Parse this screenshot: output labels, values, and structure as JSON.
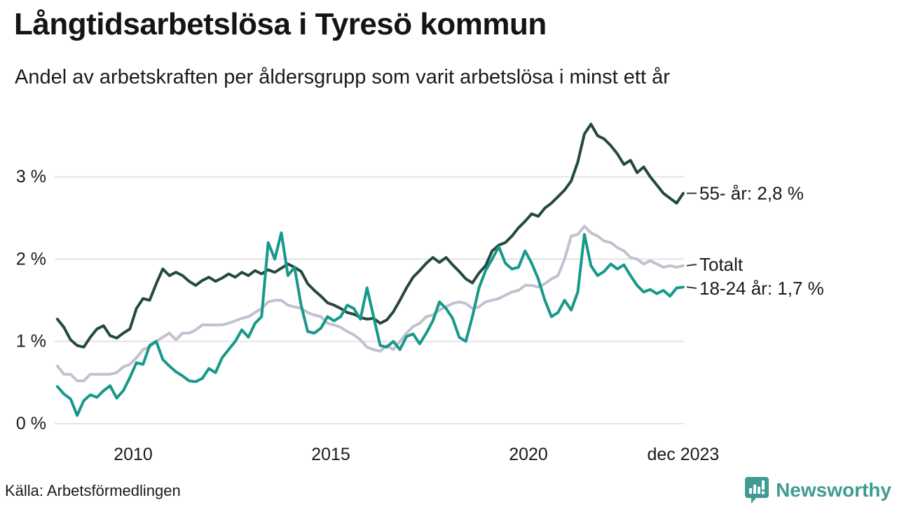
{
  "header": {
    "title": "Långtidsarbetslösa i Tyresö kommun",
    "subtitle": "Andel av arbetskraften per åldersgrupp som varit arbetslösa i minst ett år"
  },
  "source": {
    "label": "Källa: Arbetsförmedlingen"
  },
  "branding": {
    "wordmark": "Newsworthy",
    "icon": "bar-chart-speech-bubble-icon",
    "color": "#3f9c92"
  },
  "colors": {
    "grid": "#e4e4e8",
    "text": "#1a1a1a",
    "leader": "#3c3c3c"
  },
  "chart_data": {
    "type": "line",
    "title": "Långtidsarbetslösa i Tyresö kommun",
    "subtitle": "Andel av arbetskraften per åldersgrupp som varit arbetslösa i minst ett år",
    "unit": "%",
    "grid": true,
    "legend_position": "right-edge-labels",
    "x_start_year": 2008.083,
    "x_step_years": 0.166667,
    "xlim": [
      2008.0,
      2023.95
    ],
    "ylim": [
      0,
      3.8
    ],
    "y_ticks": [
      {
        "label": "0 %",
        "value": 0
      },
      {
        "label": "1 %",
        "value": 1
      },
      {
        "label": "2 %",
        "value": 2
      },
      {
        "label": "3 %",
        "value": 3
      }
    ],
    "x_ticks": [
      {
        "label": "2010",
        "year": 2010
      },
      {
        "label": "2015",
        "year": 2015
      },
      {
        "label": "2020",
        "year": 2020
      },
      {
        "label": "dec 2023",
        "year": 2023.917
      }
    ],
    "series": [
      {
        "name": "Totalt",
        "slug": "totalt",
        "end_label": "Totalt",
        "color": "#c3c1d0",
        "values": [
          0.7,
          0.6,
          0.6,
          0.52,
          0.52,
          0.6,
          0.6,
          0.6,
          0.6,
          0.62,
          0.69,
          0.72,
          0.8,
          0.9,
          0.93,
          1.0,
          1.05,
          1.1,
          1.02,
          1.1,
          1.1,
          1.14,
          1.2,
          1.2,
          1.2,
          1.2,
          1.22,
          1.25,
          1.28,
          1.3,
          1.35,
          1.4,
          1.48,
          1.5,
          1.5,
          1.44,
          1.42,
          1.4,
          1.35,
          1.32,
          1.3,
          1.22,
          1.2,
          1.17,
          1.12,
          1.08,
          1.02,
          0.93,
          0.9,
          0.88,
          0.95,
          0.9,
          1.0,
          1.1,
          1.18,
          1.22,
          1.3,
          1.32,
          1.38,
          1.42,
          1.46,
          1.48,
          1.46,
          1.4,
          1.42,
          1.48,
          1.5,
          1.52,
          1.56,
          1.6,
          1.62,
          1.68,
          1.68,
          1.66,
          1.7,
          1.76,
          1.8,
          2.0,
          2.28,
          2.3,
          2.4,
          2.32,
          2.28,
          2.22,
          2.2,
          2.14,
          2.1,
          2.02,
          2.0,
          1.94,
          1.98,
          1.94,
          1.9,
          1.92,
          1.9,
          1.92
        ]
      },
      {
        "name": "55- år",
        "slug": "55-ar",
        "end_label": "55- år: 2,8 %",
        "color": "#26493f",
        "values": [
          1.27,
          1.17,
          1.02,
          0.95,
          0.93,
          1.05,
          1.15,
          1.19,
          1.07,
          1.04,
          1.1,
          1.15,
          1.4,
          1.52,
          1.5,
          1.7,
          1.88,
          1.8,
          1.84,
          1.8,
          1.73,
          1.68,
          1.74,
          1.78,
          1.73,
          1.77,
          1.82,
          1.78,
          1.84,
          1.8,
          1.86,
          1.82,
          1.87,
          1.84,
          1.89,
          1.94,
          1.9,
          1.85,
          1.7,
          1.62,
          1.55,
          1.47,
          1.44,
          1.4,
          1.35,
          1.33,
          1.29,
          1.27,
          1.28,
          1.22,
          1.26,
          1.36,
          1.5,
          1.65,
          1.78,
          1.86,
          1.95,
          2.02,
          1.96,
          2.02,
          1.93,
          1.85,
          1.76,
          1.71,
          1.83,
          1.92,
          2.1,
          2.17,
          2.2,
          2.28,
          2.38,
          2.46,
          2.55,
          2.52,
          2.62,
          2.68,
          2.76,
          2.84,
          2.95,
          3.18,
          3.52,
          3.64,
          3.5,
          3.46,
          3.38,
          3.28,
          3.15,
          3.2,
          3.05,
          3.12,
          3.0,
          2.9,
          2.8,
          2.74,
          2.68,
          2.8
        ]
      },
      {
        "name": "18-24 år",
        "slug": "18-24-ar",
        "end_label": "18-24 år: 1,7 %",
        "color": "#16998a",
        "values": [
          0.45,
          0.36,
          0.3,
          0.1,
          0.28,
          0.35,
          0.32,
          0.4,
          0.46,
          0.31,
          0.4,
          0.56,
          0.74,
          0.72,
          0.95,
          1.0,
          0.78,
          0.7,
          0.63,
          0.58,
          0.52,
          0.51,
          0.55,
          0.67,
          0.62,
          0.8,
          0.9,
          1.0,
          1.14,
          1.05,
          1.22,
          1.3,
          2.2,
          2.0,
          2.32,
          1.8,
          1.9,
          1.44,
          1.12,
          1.1,
          1.16,
          1.3,
          1.25,
          1.3,
          1.44,
          1.4,
          1.27,
          1.65,
          1.3,
          0.95,
          0.93,
          1.0,
          0.9,
          1.06,
          1.09,
          0.97,
          1.1,
          1.25,
          1.48,
          1.4,
          1.28,
          1.05,
          1.0,
          1.3,
          1.65,
          1.86,
          2.0,
          2.15,
          1.95,
          1.88,
          1.9,
          2.1,
          1.95,
          1.76,
          1.5,
          1.3,
          1.35,
          1.5,
          1.38,
          1.6,
          2.3,
          1.92,
          1.8,
          1.85,
          1.94,
          1.88,
          1.93,
          1.8,
          1.68,
          1.6,
          1.63,
          1.58,
          1.62,
          1.55,
          1.65,
          1.66
        ]
      }
    ]
  }
}
